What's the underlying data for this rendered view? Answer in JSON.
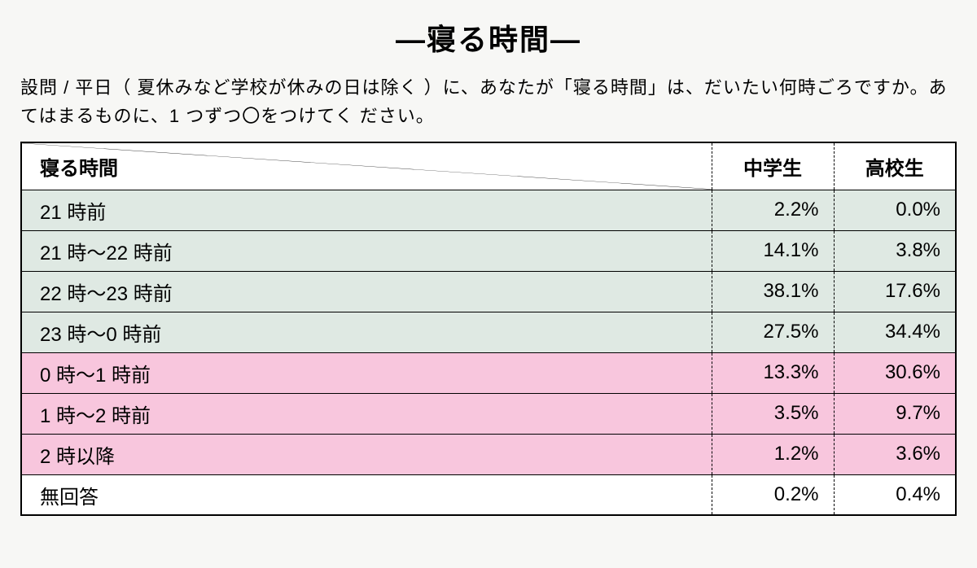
{
  "title": "―寝る時間―",
  "question": "設問 / 平日（ 夏休みなど学校が休みの日は除く ）に、あなたが「寝る時間」は、だいたい何時ごろですか。あてはまるものに、1 つずつ〇をつけてく ださい。",
  "table": {
    "header": {
      "rowLabel": "寝る時間",
      "col1": "中学生",
      "col2": "高校生"
    },
    "rows": [
      {
        "label": "21 時前",
        "v1": "2.2%",
        "v2": "0.0%",
        "bg": "bg-green"
      },
      {
        "label": "21 時～22 時前",
        "v1": "14.1%",
        "v2": "3.8%",
        "bg": "bg-green"
      },
      {
        "label": "22 時～23 時前",
        "v1": "38.1%",
        "v2": "17.6%",
        "bg": "bg-green"
      },
      {
        "label": "23 時～0 時前",
        "v1": "27.5%",
        "v2": "34.4%",
        "bg": "bg-green"
      },
      {
        "label": "0 時～1 時前",
        "v1": "13.3%",
        "v2": "30.6%",
        "bg": "bg-pink"
      },
      {
        "label": "1 時～2 時前",
        "v1": "3.5%",
        "v2": "9.7%",
        "bg": "bg-pink"
      },
      {
        "label": "2 時以降",
        "v1": "1.2%",
        "v2": "3.6%",
        "bg": "bg-pink"
      },
      {
        "label": "無回答",
        "v1": "0.2%",
        "v2": "0.4%",
        "bg": "bg-white"
      }
    ],
    "colors": {
      "green": "#dfe9e3",
      "pink": "#f8c6dd",
      "white": "#ffffff",
      "border": "#000000",
      "pageBg": "#f7f7f5"
    },
    "fontSizes": {
      "title": 36,
      "question": 22,
      "cell": 24
    },
    "columnWidths": {
      "label": "auto",
      "col1": 150,
      "col2": 150
    }
  }
}
